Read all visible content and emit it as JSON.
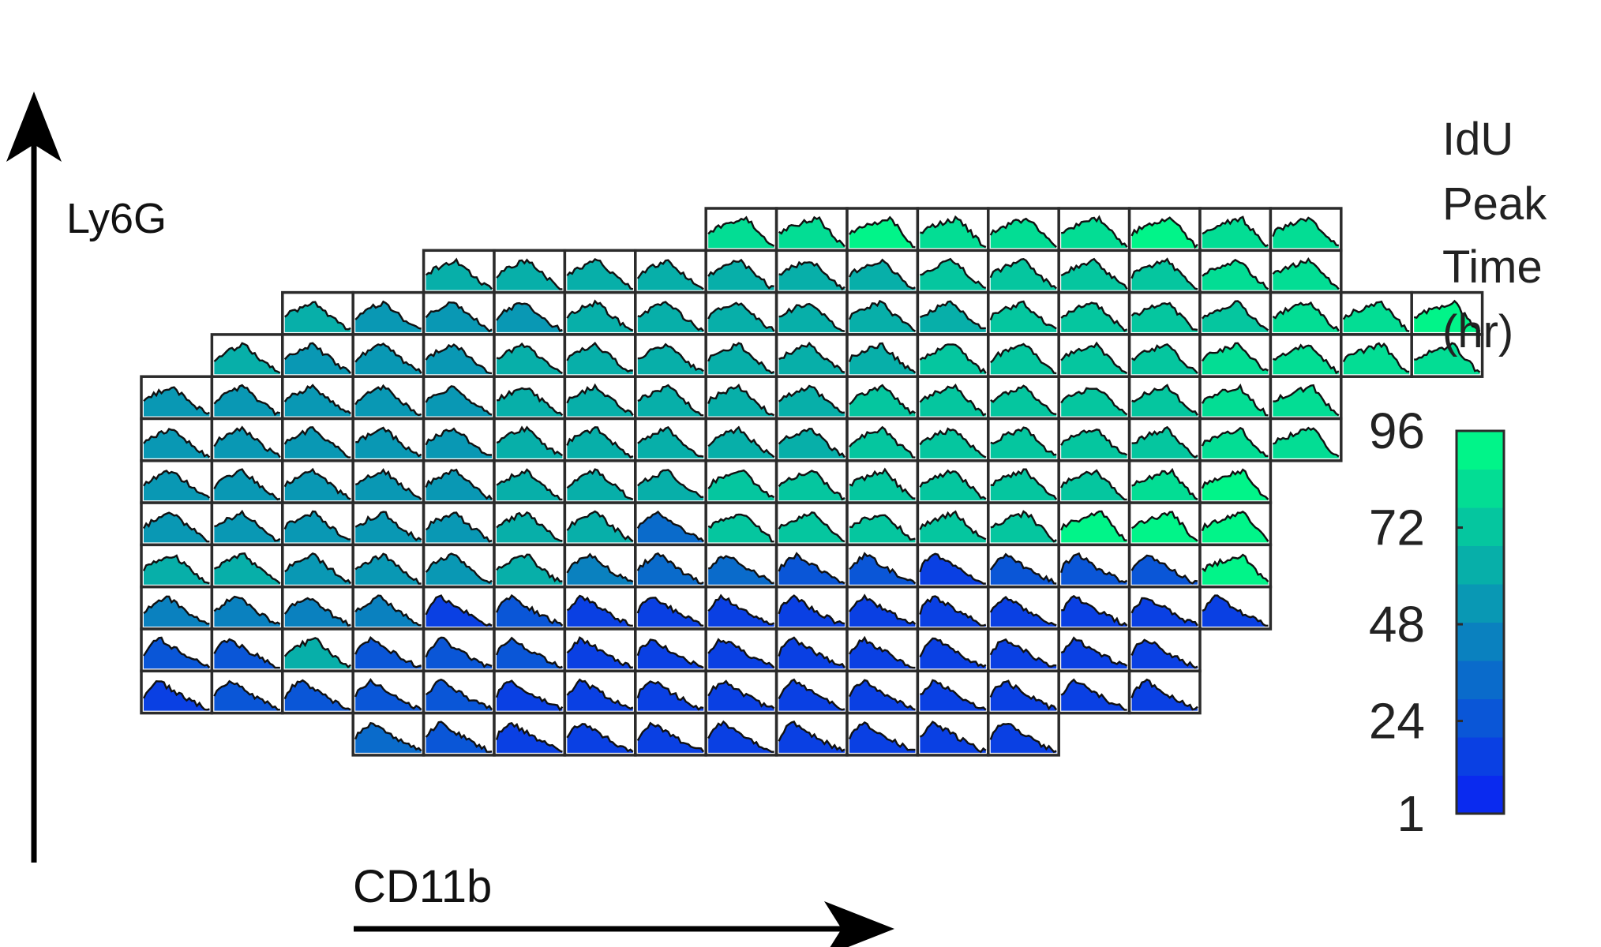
{
  "chart_data": {
    "type": "heatmap",
    "title": "",
    "xlabel": "CD11b",
    "ylabel": "Ly6G",
    "colorbar": {
      "title_lines": [
        "IdU",
        "Peak",
        "Time",
        "(hr)"
      ],
      "ticks": [
        {
          "value": 96,
          "label": "96"
        },
        {
          "value": 72,
          "label": "72"
        },
        {
          "value": 48,
          "label": "48"
        },
        {
          "value": 24,
          "label": "24"
        },
        {
          "value": 1,
          "label": "1"
        }
      ],
      "range": [
        1,
        96
      ],
      "levels": 10,
      "color_low": "#0a1ff5",
      "color_mid": "#0a8cb9",
      "color_high": "#00ff84"
    },
    "rows": [
      {
        "start_col": 8,
        "values": [
          82,
          84,
          92,
          82,
          80,
          80,
          88,
          86,
          78
        ]
      },
      {
        "start_col": 4,
        "values": [
          60,
          60,
          60,
          62,
          64,
          64,
          66,
          68,
          70,
          72,
          74,
          78,
          80
        ]
      },
      {
        "start_col": 2,
        "values": [
          58,
          56,
          56,
          56,
          58,
          58,
          58,
          62,
          64,
          66,
          68,
          70,
          74,
          76,
          78,
          82,
          88
        ]
      },
      {
        "start_col": 1,
        "values": [
          58,
          56,
          56,
          56,
          58,
          58,
          60,
          62,
          64,
          66,
          70,
          72,
          74,
          76,
          78,
          80,
          84,
          86
        ]
      },
      {
        "start_col": 0,
        "values": [
          56,
          56,
          56,
          56,
          56,
          58,
          58,
          62,
          62,
          66,
          70,
          72,
          72,
          74,
          76,
          78,
          86
        ]
      },
      {
        "start_col": 0,
        "values": [
          56,
          56,
          56,
          56,
          56,
          58,
          58,
          60,
          62,
          66,
          70,
          72,
          72,
          74,
          76,
          82,
          86
        ]
      },
      {
        "start_col": 0,
        "values": [
          56,
          56,
          56,
          56,
          56,
          58,
          58,
          60,
          70,
          72,
          72,
          72,
          72,
          74,
          86,
          88
        ]
      },
      {
        "start_col": 0,
        "values": [
          56,
          56,
          56,
          56,
          56,
          58,
          58,
          30,
          72,
          72,
          72,
          74,
          76,
          88,
          88,
          90
        ]
      },
      {
        "start_col": 0,
        "values": [
          60,
          60,
          56,
          56,
          56,
          60,
          40,
          36,
          32,
          28,
          22,
          18,
          20,
          22,
          22,
          90
        ]
      },
      {
        "start_col": 0,
        "values": [
          42,
          42,
          42,
          44,
          18,
          20,
          18,
          18,
          18,
          18,
          18,
          18,
          18,
          18,
          18,
          16
        ]
      },
      {
        "start_col": 0,
        "values": [
          22,
          20,
          62,
          22,
          20,
          20,
          18,
          18,
          18,
          18,
          18,
          18,
          18,
          18,
          18
        ]
      },
      {
        "start_col": 0,
        "values": [
          18,
          22,
          22,
          20,
          20,
          18,
          18,
          18,
          18,
          18,
          18,
          18,
          18,
          18,
          18
        ]
      },
      {
        "start_col": 3,
        "values": [
          30,
          20,
          18,
          18,
          18,
          18,
          18,
          18,
          18,
          18
        ]
      }
    ]
  }
}
